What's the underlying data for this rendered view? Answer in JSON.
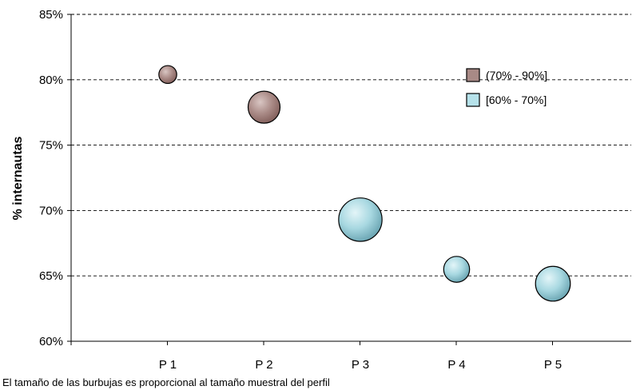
{
  "chart_data": {
    "type": "scatter",
    "subtype": "bubble",
    "title": "",
    "xlabel": "",
    "ylabel": "% internautas",
    "categories": [
      "P 1",
      "P 2",
      "P 3",
      "P 4",
      "P 5"
    ],
    "ylim": [
      60,
      85
    ],
    "yticks": [
      60,
      65,
      70,
      75,
      80,
      85
    ],
    "ytick_labels": [
      "60%",
      "65%",
      "70%",
      "75%",
      "80%",
      "85%"
    ],
    "grid": true,
    "legend_position": "top-right",
    "series": [
      {
        "name": "(70% - 90%]",
        "color": "#a88a86",
        "points": [
          {
            "x": "P 1",
            "y": 80.4,
            "size": 1.0
          },
          {
            "x": "P 2",
            "y": 77.9,
            "size": 3.2
          }
        ]
      },
      {
        "name": "[60% - 70%]",
        "color": "#b6e2ea",
        "points": [
          {
            "x": "P 3",
            "y": 69.3,
            "size": 5.9
          },
          {
            "x": "P 4",
            "y": 65.5,
            "size": 2.1
          },
          {
            "x": "P 5",
            "y": 64.4,
            "size": 3.8
          }
        ]
      }
    ],
    "footnote": "El tamaño de las burbujas es proporcional al tamaño muestral del perfil"
  }
}
